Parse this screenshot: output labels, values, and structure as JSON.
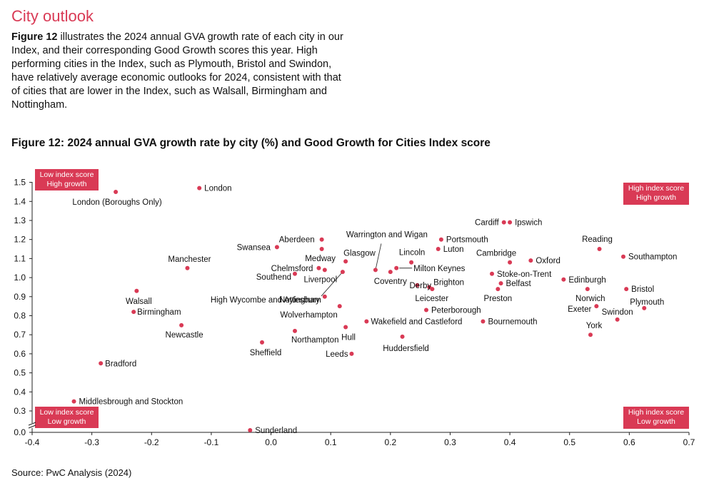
{
  "section_title": "City outlook",
  "intro": {
    "figure_ref": "Figure 12",
    "text": " illustrates the 2024 annual GVA growth rate of each city in our Index, and their corresponding Good Growth scores this year. High performing cities in the Index, such as Plymouth, Bristol and Swindon, have relatively average economic outlooks for 2024, consistent with that of cities that are lower in the Index, such as Walsall, Birmingham and Nottingham."
  },
  "colors": {
    "accent": "#d93a55",
    "text": "#111111",
    "axis": "#222222",
    "leader": "#333333"
  },
  "source": "Source: PwC Analysis (2024)",
  "chart_data": {
    "type": "scatter",
    "title": "Figure 12: 2024 annual GVA growth rate by city (%) and Good Growth for Cities Index score",
    "xlabel": "",
    "ylabel": "",
    "xlim": [
      -0.4,
      0.7
    ],
    "ylim": [
      0.0,
      1.5
    ],
    "x_ticks": [
      "-0.4",
      "-0.3",
      "-0.2",
      "-0.1",
      "0.0",
      "0.1",
      "0.2",
      "0.3",
      "0.4",
      "0.5",
      "0.6",
      "0.7"
    ],
    "y_ticks": [
      "0.0",
      "0.3",
      "0.4",
      "0.5",
      "0.6",
      "0.7",
      "0.8",
      "0.9",
      "1.0",
      "1.1",
      "1.2",
      "1.3",
      "1.4",
      "1.5"
    ],
    "quadrant_labels": [
      {
        "corner": "top-left",
        "lines": [
          "Low index score",
          "High growth"
        ]
      },
      {
        "corner": "top-right",
        "lines": [
          "High index score",
          "High growth"
        ]
      },
      {
        "corner": "bottom-left",
        "lines": [
          "Low index score",
          "Low growth"
        ]
      },
      {
        "corner": "bottom-right",
        "lines": [
          "High index score",
          "Low growth"
        ]
      }
    ],
    "points": [
      {
        "name": "London",
        "x": -0.12,
        "y": 1.47
      },
      {
        "name": "London (Boroughs Only)",
        "x": -0.26,
        "y": 1.45
      },
      {
        "name": "Manchester",
        "x": -0.14,
        "y": 1.05
      },
      {
        "name": "Walsall",
        "x": -0.225,
        "y": 0.93
      },
      {
        "name": "Birmingham",
        "x": -0.23,
        "y": 0.82
      },
      {
        "name": "Newcastle",
        "x": -0.15,
        "y": 0.75
      },
      {
        "name": "Bradford",
        "x": -0.285,
        "y": 0.55
      },
      {
        "name": "Middlesbrough and Stockton",
        "x": -0.33,
        "y": 0.35
      },
      {
        "name": "Sunderland",
        "x": -0.035,
        "y": 0.03
      },
      {
        "name": "Aberdeen",
        "x": 0.085,
        "y": 1.2
      },
      {
        "name": "Swansea",
        "x": 0.01,
        "y": 1.16
      },
      {
        "name": "Medway",
        "x": 0.085,
        "y": 1.15
      },
      {
        "name": "Glasgow",
        "x": 0.125,
        "y": 1.085
      },
      {
        "name": "Chelmsford",
        "x": 0.08,
        "y": 1.05
      },
      {
        "name": "Liverpool",
        "x": 0.09,
        "y": 1.04
      },
      {
        "name": "Southend",
        "x": 0.04,
        "y": 1.02
      },
      {
        "name": "High Wycombe and Aylesbury",
        "x": 0.12,
        "y": 1.03
      },
      {
        "name": "Nottingham",
        "x": 0.09,
        "y": 0.9
      },
      {
        "name": "Wolverhampton",
        "x": 0.115,
        "y": 0.85
      },
      {
        "name": "Northampton",
        "x": 0.04,
        "y": 0.72
      },
      {
        "name": "Sheffield",
        "x": -0.015,
        "y": 0.66
      },
      {
        "name": "Hull",
        "x": 0.125,
        "y": 0.74
      },
      {
        "name": "Leeds",
        "x": 0.135,
        "y": 0.6
      },
      {
        "name": "Warrington and Wigan",
        "x": 0.175,
        "y": 1.04
      },
      {
        "name": "Coventry",
        "x": 0.2,
        "y": 1.03
      },
      {
        "name": "Lincoln",
        "x": 0.235,
        "y": 1.08
      },
      {
        "name": "Milton Keynes",
        "x": 0.21,
        "y": 1.05
      },
      {
        "name": "Derby",
        "x": 0.245,
        "y": 0.96
      },
      {
        "name": "Brighton",
        "x": 0.265,
        "y": 0.95
      },
      {
        "name": "Leicester",
        "x": 0.27,
        "y": 0.94
      },
      {
        "name": "Peterborough",
        "x": 0.26,
        "y": 0.83
      },
      {
        "name": "Wakefield and Castleford",
        "x": 0.16,
        "y": 0.77
      },
      {
        "name": "Huddersfield",
        "x": 0.22,
        "y": 0.69
      },
      {
        "name": "Portsmouth",
        "x": 0.285,
        "y": 1.2
      },
      {
        "name": "Luton",
        "x": 0.28,
        "y": 1.15
      },
      {
        "name": "Cardiff",
        "x": 0.39,
        "y": 1.29
      },
      {
        "name": "Ipswich",
        "x": 0.4,
        "y": 1.29
      },
      {
        "name": "Cambridge",
        "x": 0.4,
        "y": 1.08
      },
      {
        "name": "Oxford",
        "x": 0.435,
        "y": 1.09
      },
      {
        "name": "Stoke-on-Trent",
        "x": 0.37,
        "y": 1.02
      },
      {
        "name": "Belfast",
        "x": 0.385,
        "y": 0.97
      },
      {
        "name": "Preston",
        "x": 0.38,
        "y": 0.94
      },
      {
        "name": "Bournemouth",
        "x": 0.355,
        "y": 0.77
      },
      {
        "name": "Reading",
        "x": 0.55,
        "y": 1.15
      },
      {
        "name": "Southampton",
        "x": 0.59,
        "y": 1.11
      },
      {
        "name": "Edinburgh",
        "x": 0.49,
        "y": 0.99
      },
      {
        "name": "Norwich",
        "x": 0.53,
        "y": 0.94
      },
      {
        "name": "Bristol",
        "x": 0.595,
        "y": 0.94
      },
      {
        "name": "Exeter",
        "x": 0.545,
        "y": 0.85
      },
      {
        "name": "Plymouth",
        "x": 0.625,
        "y": 0.84
      },
      {
        "name": "Swindon",
        "x": 0.58,
        "y": 0.78
      },
      {
        "name": "York",
        "x": 0.535,
        "y": 0.7
      }
    ]
  }
}
